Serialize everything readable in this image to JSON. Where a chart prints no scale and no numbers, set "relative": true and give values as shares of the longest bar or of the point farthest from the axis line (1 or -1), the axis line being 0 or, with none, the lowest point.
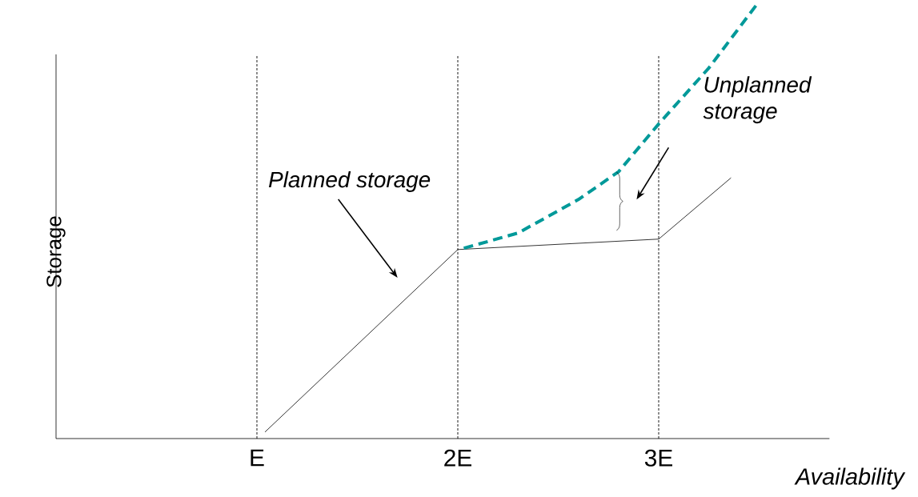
{
  "chart_data": {
    "type": "line",
    "relative": true,
    "xlabel": "Availability",
    "ylabel": "Storage",
    "xlim": [
      0,
      3.85
    ],
    "xticks": [
      {
        "value": 1,
        "label": "E"
      },
      {
        "value": 2,
        "label": "2E"
      },
      {
        "value": 3,
        "label": "3E"
      }
    ],
    "series": [
      {
        "color": "#000000",
        "line_style": "solid",
        "x": [
          1.04,
          2,
          3,
          3.36
        ],
        "values": [
          0.015,
          0.435,
          0.459,
          0.6
        ]
      },
      {
        "color": "#009999",
        "line_style": "dashed",
        "x": [
          2.03,
          2.3,
          2.6,
          2.8,
          3.0,
          3.25,
          3.49
        ],
        "values": [
          0.438,
          0.473,
          0.55,
          0.614,
          0.724,
          0.853,
          1.0
        ]
      }
    ],
    "ref_lines": [
      {
        "axis": "x",
        "value": 1,
        "line_style": "dashed",
        "color": "#000000"
      },
      {
        "axis": "x",
        "value": 2,
        "line_style": "dashed",
        "color": "#000000"
      },
      {
        "axis": "x",
        "value": 3,
        "line_style": "dashed",
        "color": "#000000"
      }
    ],
    "annotations": [
      "Planned storage",
      "Unplanned storage"
    ]
  }
}
